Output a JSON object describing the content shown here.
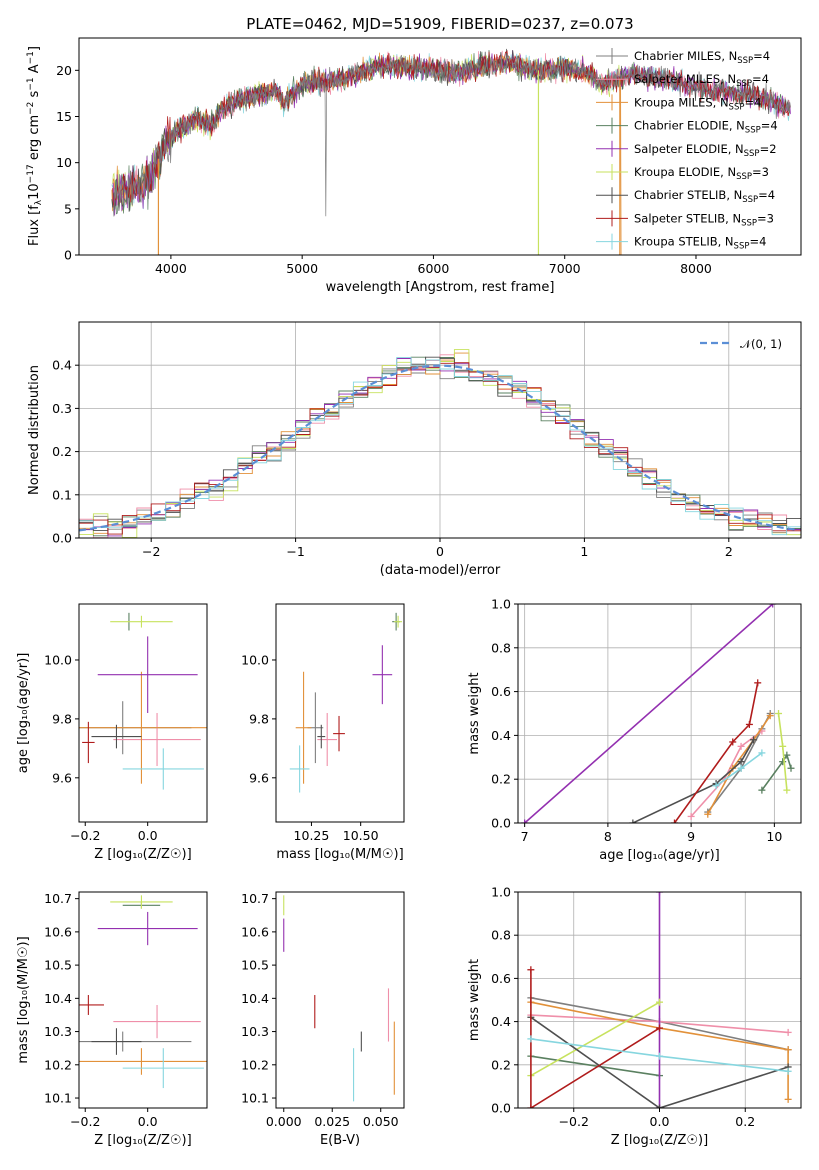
{
  "title": "PLATE=0462, MJD=51909, FIBERID=0237, z=0.073",
  "colors": [
    "#7f7f7f",
    "#ef8fa9",
    "#e2913a",
    "#5a8060",
    "#9330b0",
    "#c7e25e",
    "#4f4f4f",
    "#b01c1c",
    "#86d6df"
  ],
  "legend_main": [
    "Chabrier MILES, N",
    "Salpeter MILES, N",
    "Kroupa MILES, N",
    "Chabrier ELODIE, N",
    "Salpeter ELODIE, N",
    "Kroupa ELODIE, N",
    "Chabrier STELIB, N",
    "Salpeter STELIB, N",
    "Kroupa STELIB, N"
  ],
  "legend_sub": "SSP",
  "legend_n": [
    "=4",
    "=4",
    "=4",
    "=4",
    "=2",
    "=3",
    "=4",
    "=3",
    "=4"
  ],
  "chart_data": [
    {
      "type": "line",
      "name": "spectrum",
      "xlabel": "wavelength [Angstrom, rest frame]",
      "ylabel_parts": [
        "Flux [f",
        "λ",
        "10",
        "−17",
        " erg cm",
        "−2",
        " s",
        "−1",
        " A",
        "−1",
        "]"
      ],
      "xlim": [
        3300,
        8800
      ],
      "ylim": [
        0,
        23.5
      ],
      "xticks": [
        4000,
        5000,
        6000,
        7000,
        8000
      ],
      "yticks": [
        0,
        5,
        10,
        15,
        20
      ],
      "continuum": [
        [
          3550,
          6.5
        ],
        [
          3700,
          7.0
        ],
        [
          3850,
          8.5
        ],
        [
          3950,
          12.0
        ],
        [
          4050,
          13.5
        ],
        [
          4200,
          14.8
        ],
        [
          4300,
          14.0
        ],
        [
          4400,
          16.0
        ],
        [
          4600,
          17.2
        ],
        [
          4800,
          17.8
        ],
        [
          4861,
          16.5
        ],
        [
          5000,
          18.5
        ],
        [
          5200,
          18.8
        ],
        [
          5400,
          19.5
        ],
        [
          5600,
          20.5
        ],
        [
          5800,
          20.4
        ],
        [
          6000,
          20.2
        ],
        [
          6200,
          19.8
        ],
        [
          6400,
          20.5
        ],
        [
          6563,
          20.8
        ],
        [
          6800,
          20.0
        ],
        [
          7000,
          20.3
        ],
        [
          7150,
          19.8
        ],
        [
          7300,
          18.5
        ],
        [
          7500,
          19.5
        ],
        [
          7800,
          19.0
        ],
        [
          8100,
          17.8
        ],
        [
          8400,
          17.5
        ],
        [
          8700,
          16.0
        ]
      ],
      "grid": false
    },
    {
      "type": "histogram",
      "name": "residual-distribution",
      "xlabel": "(data-model)/error",
      "ylabel": "Normed distribution",
      "xlim": [
        -2.5,
        2.5
      ],
      "ylim": [
        0,
        0.5
      ],
      "xticks": [
        -2,
        -1,
        0,
        1,
        2
      ],
      "yticks": [
        0.0,
        0.1,
        0.2,
        0.3,
        0.4
      ],
      "bin_width": 0.1,
      "reference_label": "𝒩(0, 1)",
      "reference_mean": 0,
      "reference_sigma": 1,
      "grid": true,
      "legend": "top-right"
    },
    {
      "type": "scatter",
      "name": "Z-vs-age",
      "xlabel": "Z [log₁₀(Z/Z☉)]",
      "ylabel": "age  [log₁₀(age/yr)]",
      "xlim": [
        -0.22,
        0.19
      ],
      "ylim": [
        9.45,
        10.19
      ],
      "xticks": [
        -0.2,
        0.0
      ],
      "yticks": [
        9.6,
        9.8,
        10.0
      ],
      "points": [
        {
          "x": -0.08,
          "y": 9.77,
          "xerr": 0.22,
          "yerr": 0.09,
          "color": 0
        },
        {
          "x": 0.03,
          "y": 9.73,
          "xerr": 0.14,
          "yerr": 0.09,
          "color": 1
        },
        {
          "x": -0.02,
          "y": 9.77,
          "xerr": 0.25,
          "yerr": 0.19,
          "color": 2
        },
        {
          "x": -0.06,
          "y": 10.13,
          "xerr": 0.0,
          "yerr": 0.03,
          "color": 3
        },
        {
          "x": 0.0,
          "y": 9.95,
          "xerr": 0.16,
          "yerr": 0.13,
          "color": 4
        },
        {
          "x": -0.02,
          "y": 10.13,
          "xerr": 0.1,
          "yerr": 0.02,
          "color": 5
        },
        {
          "x": -0.1,
          "y": 9.74,
          "xerr": 0.08,
          "yerr": 0.04,
          "color": 6
        },
        {
          "x": -0.19,
          "y": 9.72,
          "xerr": 0.02,
          "yerr": 0.07,
          "color": 7
        },
        {
          "x": 0.05,
          "y": 9.63,
          "xerr": 0.13,
          "yerr": 0.07,
          "color": 8
        }
      ]
    },
    {
      "type": "scatter",
      "name": "mass-vs-age",
      "xlabel": "mass [log₁₀(M/M☉)]",
      "ylabel": "",
      "xlim": [
        10.07,
        10.72
      ],
      "ylim": [
        9.45,
        10.19
      ],
      "xticks": [
        10.25,
        10.5
      ],
      "yticks": [
        9.6,
        9.8,
        10.0
      ],
      "points": [
        {
          "x": 10.27,
          "y": 9.77,
          "xerr": 0.04,
          "yerr": 0.12,
          "color": 0
        },
        {
          "x": 10.33,
          "y": 9.73,
          "xerr": 0.05,
          "yerr": 0.09,
          "color": 1
        },
        {
          "x": 10.21,
          "y": 9.77,
          "xerr": 0.04,
          "yerr": 0.19,
          "color": 2
        },
        {
          "x": 10.68,
          "y": 10.13,
          "xerr": 0.02,
          "yerr": 0.03,
          "color": 3
        },
        {
          "x": 10.61,
          "y": 9.95,
          "xerr": 0.05,
          "yerr": 0.1,
          "color": 4
        },
        {
          "x": 10.69,
          "y": 10.13,
          "xerr": 0.02,
          "yerr": 0.02,
          "color": 5
        },
        {
          "x": 10.3,
          "y": 9.74,
          "xerr": 0.02,
          "yerr": 0.04,
          "color": 6
        },
        {
          "x": 10.39,
          "y": 9.75,
          "xerr": 0.03,
          "yerr": 0.06,
          "color": 7
        },
        {
          "x": 10.19,
          "y": 9.63,
          "xerr": 0.05,
          "yerr": 0.08,
          "color": 8
        }
      ]
    },
    {
      "type": "line",
      "name": "age-vs-mass-weight",
      "xlabel": "age  [log₁₀(age/yr)]",
      "ylabel": "mass weight",
      "xlim": [
        6.92,
        10.32
      ],
      "ylim": [
        0,
        1
      ],
      "xticks": [
        7,
        8,
        9,
        10
      ],
      "yticks": [
        0.0,
        0.2,
        0.4,
        0.6,
        0.8,
        1.0
      ],
      "series": [
        {
          "color": 0,
          "points": [
            [
              9.2,
              0.05
            ],
            [
              9.6,
              0.25
            ],
            [
              9.85,
              0.43
            ],
            [
              9.95,
              0.5
            ]
          ]
        },
        {
          "color": 1,
          "points": [
            [
              9.0,
              0.03
            ],
            [
              9.4,
              0.2
            ],
            [
              9.6,
              0.35
            ],
            [
              9.85,
              0.42
            ]
          ]
        },
        {
          "color": 2,
          "points": [
            [
              9.2,
              0.04
            ],
            [
              9.5,
              0.25
            ],
            [
              9.75,
              0.38
            ],
            [
              9.95,
              0.49
            ]
          ]
        },
        {
          "color": 3,
          "points": [
            [
              9.85,
              0.15
            ],
            [
              10.1,
              0.28
            ],
            [
              10.15,
              0.31
            ],
            [
              10.2,
              0.25
            ]
          ]
        },
        {
          "color": 4,
          "points": [
            [
              7.0,
              0.0
            ],
            [
              9.98,
              1.0
            ]
          ]
        },
        {
          "color": 5,
          "points": [
            [
              10.15,
              0.15
            ],
            [
              10.1,
              0.35
            ],
            [
              10.05,
              0.5
            ]
          ]
        },
        {
          "color": 6,
          "points": [
            [
              8.3,
              0.0
            ],
            [
              9.3,
              0.18
            ],
            [
              9.6,
              0.28
            ],
            [
              9.75,
              0.38
            ]
          ]
        },
        {
          "color": 7,
          "points": [
            [
              8.8,
              0.0
            ],
            [
              9.5,
              0.37
            ],
            [
              9.7,
              0.45
            ],
            [
              9.8,
              0.64
            ]
          ]
        },
        {
          "color": 8,
          "points": [
            [
              9.3,
              0.17
            ],
            [
              9.6,
              0.25
            ],
            [
              9.85,
              0.32
            ]
          ]
        }
      ],
      "grid": true
    },
    {
      "type": "scatter",
      "name": "Z-vs-mass",
      "xlabel": "Z [log₁₀(Z/Z☉)]",
      "ylabel": "mass [log₁₀(M/M☉)]",
      "xlim": [
        -0.22,
        0.19
      ],
      "ylim": [
        10.07,
        10.72
      ],
      "xticks": [
        -0.2,
        0.0
      ],
      "yticks": [
        10.1,
        10.2,
        10.3,
        10.4,
        10.5,
        10.6,
        10.7
      ],
      "points": [
        {
          "x": -0.08,
          "y": 10.27,
          "xerr": 0.22,
          "yerr": 0.03,
          "color": 0
        },
        {
          "x": 0.03,
          "y": 10.33,
          "xerr": 0.14,
          "yerr": 0.05,
          "color": 1
        },
        {
          "x": -0.02,
          "y": 10.21,
          "xerr": 0.25,
          "yerr": 0.04,
          "color": 2
        },
        {
          "x": -0.02,
          "y": 10.68,
          "xerr": 0.06,
          "yerr": 0.01,
          "color": 3
        },
        {
          "x": 0.0,
          "y": 10.61,
          "xerr": 0.16,
          "yerr": 0.05,
          "color": 4
        },
        {
          "x": -0.02,
          "y": 10.69,
          "xerr": 0.1,
          "yerr": 0.02,
          "color": 5
        },
        {
          "x": -0.1,
          "y": 10.27,
          "xerr": 0.08,
          "yerr": 0.04,
          "color": 6
        },
        {
          "x": -0.19,
          "y": 10.38,
          "xerr": 0.05,
          "yerr": 0.03,
          "color": 7
        },
        {
          "x": 0.05,
          "y": 10.19,
          "xerr": 0.13,
          "yerr": 0.06,
          "color": 8
        }
      ]
    },
    {
      "type": "scatter",
      "name": "EBV-vs-mass",
      "xlabel": "E(B-V)",
      "ylabel": "",
      "xlim": [
        -0.004,
        0.062
      ],
      "ylim": [
        10.07,
        10.72
      ],
      "xticks": [
        0.0,
        0.025,
        0.05
      ],
      "yticks": [
        10.1,
        10.2,
        10.3,
        10.4,
        10.5,
        10.6,
        10.7
      ],
      "points": [
        {
          "x": 0.054,
          "y": 10.35,
          "yerr": 0.08,
          "color": 1
        },
        {
          "x": 0.057,
          "y": 10.22,
          "yerr": 0.11,
          "color": 2
        },
        {
          "x": 0.0,
          "y": 10.68,
          "yerr": 0.03,
          "color": 5
        },
        {
          "x": 0.0,
          "y": 10.59,
          "yerr": 0.05,
          "color": 4
        },
        {
          "x": 0.04,
          "y": 10.27,
          "yerr": 0.03,
          "color": 6
        },
        {
          "x": 0.016,
          "y": 10.36,
          "yerr": 0.05,
          "color": 7
        },
        {
          "x": 0.036,
          "y": 10.17,
          "yerr": 0.08,
          "color": 8
        }
      ]
    },
    {
      "type": "line",
      "name": "Z-vs-mass-weight",
      "xlabel": "Z [log₁₀(Z/Z☉)]",
      "ylabel": "mass weight",
      "xlim": [
        -0.33,
        0.33
      ],
      "ylim": [
        0,
        1
      ],
      "xticks": [
        -0.2,
        0.0,
        0.2
      ],
      "yticks": [
        0.0,
        0.2,
        0.4,
        0.6,
        0.8,
        1.0
      ],
      "series": [
        {
          "color": 0,
          "points": [
            [
              -0.3,
              0.51
            ],
            [
              0.0,
              0.4
            ],
            [
              0.3,
              0.27
            ]
          ]
        },
        {
          "color": 1,
          "points": [
            [
              -0.3,
              0.43
            ],
            [
              0.0,
              0.4
            ],
            [
              0.3,
              0.35
            ]
          ]
        },
        {
          "color": 2,
          "points": [
            [
              -0.3,
              0.49
            ],
            [
              0.0,
              0.37
            ],
            [
              0.3,
              0.27
            ],
            [
              0.3,
              0.04
            ]
          ]
        },
        {
          "color": 3,
          "points": [
            [
              -0.3,
              0.24
            ],
            [
              0.0,
              0.15
            ]
          ]
        },
        {
          "color": 4,
          "points": [
            [
              0.0,
              1.0
            ],
            [
              0.0,
              0.0
            ]
          ]
        },
        {
          "color": 5,
          "points": [
            [
              -0.3,
              0.15
            ],
            [
              0.0,
              0.49
            ]
          ]
        },
        {
          "color": 6,
          "points": [
            [
              -0.3,
              0.42
            ],
            [
              0.0,
              0.0
            ],
            [
              0.3,
              0.19
            ]
          ]
        },
        {
          "color": 7,
          "points": [
            [
              -0.3,
              0.64
            ],
            [
              -0.3,
              0.0
            ],
            [
              0.0,
              0.37
            ]
          ]
        },
        {
          "color": 8,
          "points": [
            [
              -0.3,
              0.32
            ],
            [
              0.0,
              0.24
            ],
            [
              0.3,
              0.17
            ]
          ]
        }
      ],
      "grid": true
    }
  ]
}
